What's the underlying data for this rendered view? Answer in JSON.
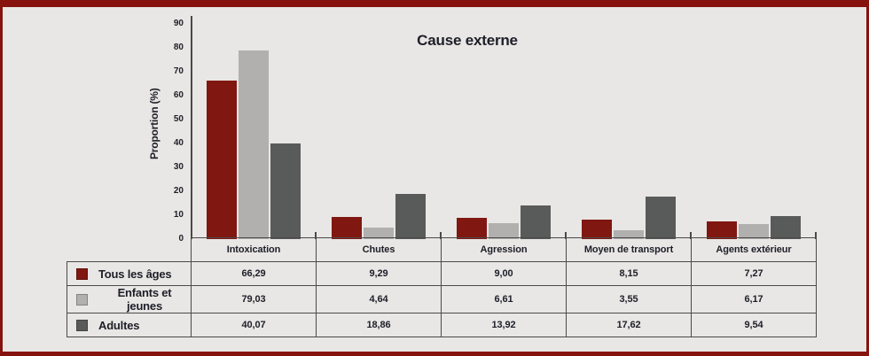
{
  "page": {
    "background_color": "#e8e7e5",
    "accent_border_color": "#86130e",
    "axis_line_color": "#4a4a48",
    "text_color": "#1e1e28"
  },
  "chart_data": {
    "type": "bar",
    "title": "Cause externe",
    "ylabel": "Proportion (%)",
    "xlabel": "",
    "ylim": [
      0,
      90
    ],
    "yticks": [
      0,
      10,
      20,
      30,
      40,
      50,
      60,
      70,
      80,
      90
    ],
    "grid": false,
    "legend_position": "table-left-column",
    "categories": [
      "Intoxication",
      "Chutes",
      "Agression",
      "Moyen de transport",
      "Agents extérieur"
    ],
    "series": [
      {
        "name": "Tous les âges",
        "color": "#801811",
        "values": [
          66.29,
          9.29,
          9.0,
          8.15,
          7.27
        ]
      },
      {
        "name": "Enfants et jeunes",
        "color": "#b1b0ae",
        "values": [
          79.03,
          4.64,
          6.61,
          3.55,
          6.17
        ]
      },
      {
        "name": "Adultes",
        "color": "#595a5a",
        "values": [
          40.07,
          18.86,
          13.92,
          17.62,
          9.54
        ]
      }
    ]
  },
  "table": {
    "headers": [
      "Intoxication",
      "Chutes",
      "Agression",
      "Moyen de transport",
      "Agents extérieur"
    ],
    "rows": [
      {
        "label": "Tous les âges",
        "swatch": "#801811",
        "values": [
          "66,29",
          "9,29",
          "9,00",
          "8,15",
          "7,27"
        ]
      },
      {
        "label": "Enfants et jeunes",
        "swatch": "#b1b0ae",
        "values": [
          "79,03",
          "4,64",
          "6,61",
          "3,55",
          "6,17"
        ]
      },
      {
        "label": "Adultes",
        "swatch": "#595a5a",
        "values": [
          "40,07",
          "18,86",
          "13,92",
          "17,62",
          "9,54"
        ]
      }
    ]
  }
}
